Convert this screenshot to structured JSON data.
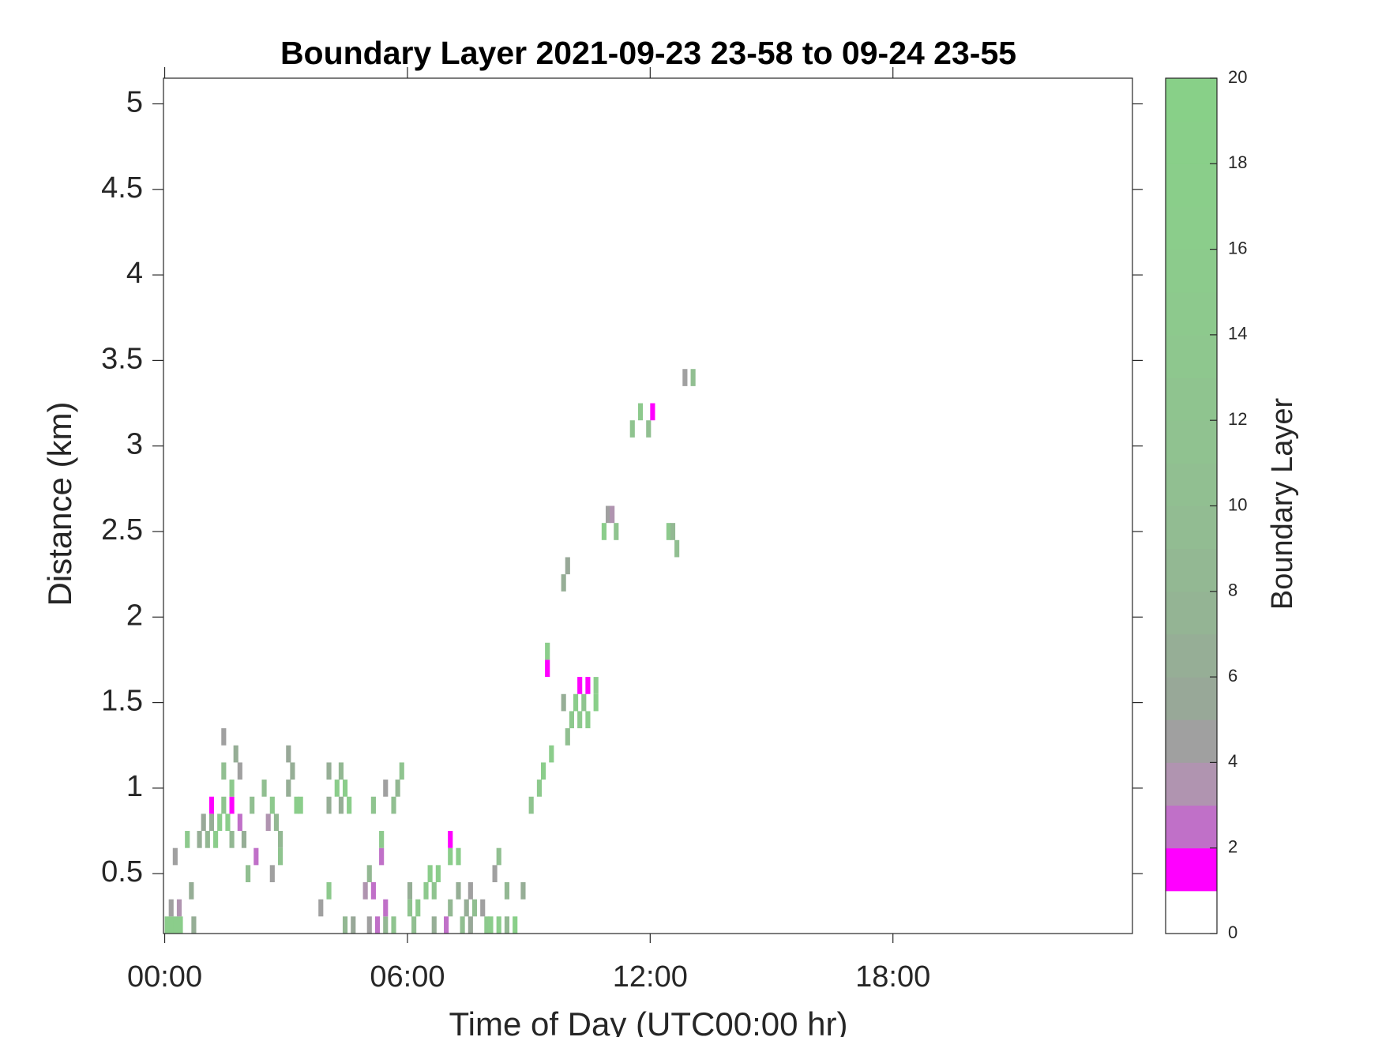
{
  "chart_data": {
    "type": "heatmap",
    "title": "Boundary Layer 2021-09-23 23-58 to 09-24 23-55",
    "x_label": "Time of Day (UTC00:00 hr)",
    "y_label": "Distance (km)",
    "colorbar_label": "Boundary Layer",
    "xlim": [
      -0.03,
      23.92
    ],
    "ylim": [
      0.15,
      5.15
    ],
    "xticks": [
      {
        "value": 0,
        "label": "00:00"
      },
      {
        "value": 6,
        "label": "06:00"
      },
      {
        "value": 12,
        "label": "12:00"
      },
      {
        "value": 18,
        "label": "18:00"
      }
    ],
    "yticks": [
      0.5,
      1,
      1.5,
      2,
      2.5,
      3,
      3.5,
      4,
      4.5,
      5
    ],
    "clim": [
      0,
      20
    ],
    "cticks": [
      0,
      2,
      4,
      6,
      8,
      10,
      12,
      14,
      16,
      18,
      20
    ],
    "colormap": [
      "#ffffff",
      "#ff00ff",
      "#c070c8",
      "#b094b0",
      "#a0a0a0",
      "#98a898",
      "#96ae96",
      "#94b494",
      "#93b893",
      "#92bc92",
      "#91bf91",
      "#90c290",
      "#8fc48f",
      "#8ec78e",
      "#8dc98d",
      "#8ccb8c",
      "#8bcd8b",
      "#8ace8a",
      "#89cf89",
      "#88d088"
    ],
    "cell_width": 0.12,
    "cell_height": 0.1,
    "cells": {
      "x": [
        0,
        0.11,
        0.22,
        0.33,
        0.66,
        4.4,
        4.6,
        5.0,
        5.2,
        5.4,
        5.6,
        6.1,
        6.6,
        6.9,
        7.3,
        7.5,
        7.9,
        8.0,
        8.2,
        8.4,
        8.6,
        0.1,
        0.3,
        3.8,
        5.4,
        6.0,
        6.2,
        7.0,
        7.4,
        7.6,
        7.8,
        0.6,
        4.0,
        4.9,
        5.1,
        6.0,
        6.4,
        6.6,
        7.2,
        7.5,
        8.4,
        8.8,
        2.0,
        2.6,
        5.0,
        6.5,
        6.7,
        8.1,
        0.2,
        2.2,
        2.8,
        5.3,
        7.0,
        7.2,
        8.2,
        0.5,
        0.8,
        1.0,
        1.2,
        1.6,
        1.9,
        2.8,
        5.3,
        7.0,
        0.9,
        1.1,
        1.3,
        1.5,
        1.8,
        2.5,
        2.7,
        1.1,
        1.4,
        1.6,
        2.1,
        2.6,
        3.2,
        3.3,
        4.0,
        4.3,
        4.5,
        5.1,
        5.6,
        9.0,
        1.6,
        2.4,
        3.0,
        4.2,
        4.4,
        5.4,
        5.7,
        9.2,
        1.4,
        1.8,
        3.1,
        4.0,
        4.3,
        5.8,
        9.3,
        1.7,
        3.0,
        9.5,
        1.4,
        9.9,
        10.0,
        10.2,
        10.4,
        9.8,
        10.1,
        10.3,
        10.6,
        10.2,
        10.4,
        10.6,
        9.4,
        9.4,
        9.8,
        9.9,
        12.6,
        10.8,
        11.1,
        12.4,
        12.5,
        10.9,
        11.0,
        11.5,
        11.9,
        11.7,
        12.0,
        12.8,
        13.0
      ],
      "y": [
        0.2,
        0.2,
        0.2,
        0.2,
        0.2,
        0.2,
        0.2,
        0.2,
        0.2,
        0.2,
        0.2,
        0.2,
        0.2,
        0.2,
        0.2,
        0.2,
        0.2,
        0.2,
        0.2,
        0.2,
        0.2,
        0.3,
        0.3,
        0.3,
        0.3,
        0.3,
        0.3,
        0.3,
        0.3,
        0.3,
        0.3,
        0.4,
        0.4,
        0.4,
        0.4,
        0.4,
        0.4,
        0.4,
        0.4,
        0.4,
        0.4,
        0.4,
        0.5,
        0.5,
        0.5,
        0.5,
        0.5,
        0.5,
        0.6,
        0.6,
        0.6,
        0.6,
        0.6,
        0.6,
        0.6,
        0.7,
        0.7,
        0.7,
        0.7,
        0.7,
        0.7,
        0.7,
        0.7,
        0.7,
        0.8,
        0.8,
        0.8,
        0.8,
        0.8,
        0.8,
        0.8,
        0.9,
        0.9,
        0.9,
        0.9,
        0.9,
        0.9,
        0.9,
        0.9,
        0.9,
        0.9,
        0.9,
        0.9,
        0.9,
        1.0,
        1.0,
        1.0,
        1.0,
        1.0,
        1.0,
        1.0,
        1.0,
        1.1,
        1.1,
        1.1,
        1.1,
        1.1,
        1.1,
        1.1,
        1.2,
        1.2,
        1.2,
        1.3,
        1.3,
        1.4,
        1.4,
        1.4,
        1.5,
        1.5,
        1.5,
        1.5,
        1.6,
        1.6,
        1.6,
        1.7,
        1.8,
        2.2,
        2.3,
        2.4,
        2.5,
        2.5,
        2.5,
        2.5,
        2.6,
        2.6,
        3.1,
        3.1,
        3.2,
        3.2,
        3.4,
        3.4
      ],
      "values": [
        16,
        16,
        16,
        16,
        6,
        8,
        5,
        4,
        2,
        8,
        12,
        10,
        6,
        2,
        10,
        5,
        14,
        16,
        16,
        8,
        18,
        4,
        3,
        4,
        2,
        12,
        14,
        8,
        6,
        10,
        4,
        6,
        14,
        3,
        2,
        6,
        14,
        12,
        6,
        4,
        8,
        6,
        10,
        4,
        8,
        16,
        16,
        4,
        4,
        2,
        12,
        2,
        16,
        16,
        10,
        14,
        6,
        8,
        16,
        8,
        6,
        8,
        14,
        1,
        5,
        6,
        16,
        16,
        2,
        3,
        8,
        1,
        12,
        1,
        10,
        14,
        16,
        16,
        6,
        6,
        16,
        12,
        10,
        12,
        14,
        10,
        6,
        16,
        16,
        4,
        8,
        14,
        10,
        4,
        6,
        6,
        8,
        12,
        16,
        6,
        5,
        16,
        4,
        10,
        14,
        14,
        16,
        6,
        16,
        12,
        18,
        1,
        1,
        16,
        1,
        16,
        6,
        5,
        10,
        16,
        12,
        14,
        8,
        4,
        3,
        12,
        10,
        14,
        1,
        4,
        10
      ]
    }
  }
}
